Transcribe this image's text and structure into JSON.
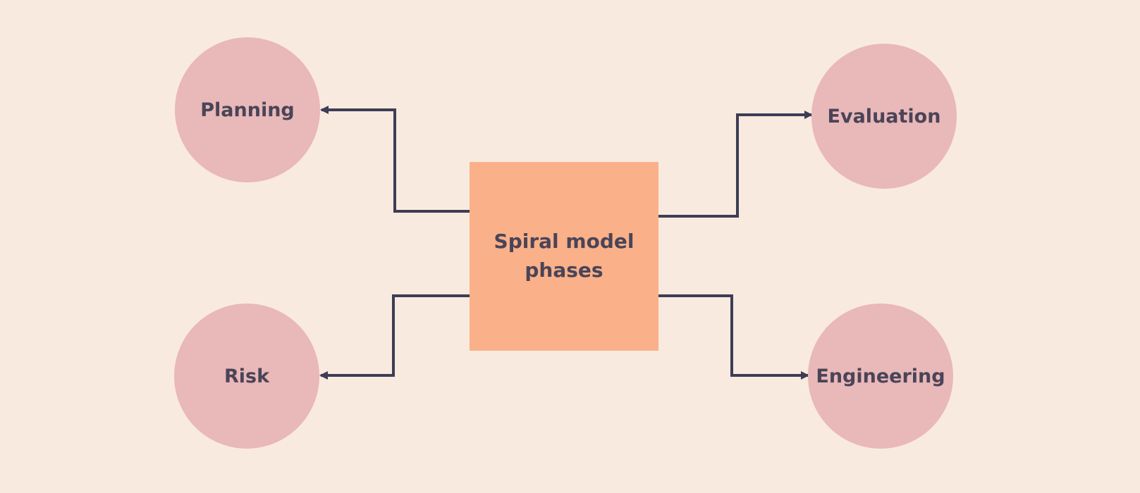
{
  "diagram": {
    "center": {
      "label": "Spiral model\nphases"
    },
    "phases": [
      {
        "id": "planning",
        "label": "Planning"
      },
      {
        "id": "evaluation",
        "label": "Evaluation"
      },
      {
        "id": "risk",
        "label": "Risk"
      },
      {
        "id": "engineering",
        "label": "Engineering"
      }
    ],
    "colors": {
      "background": "#f9eadf",
      "center_fill": "#fab088",
      "circle_fill": "#e9b8b8",
      "connector": "#3d3d55",
      "text": "#4a4458"
    }
  }
}
